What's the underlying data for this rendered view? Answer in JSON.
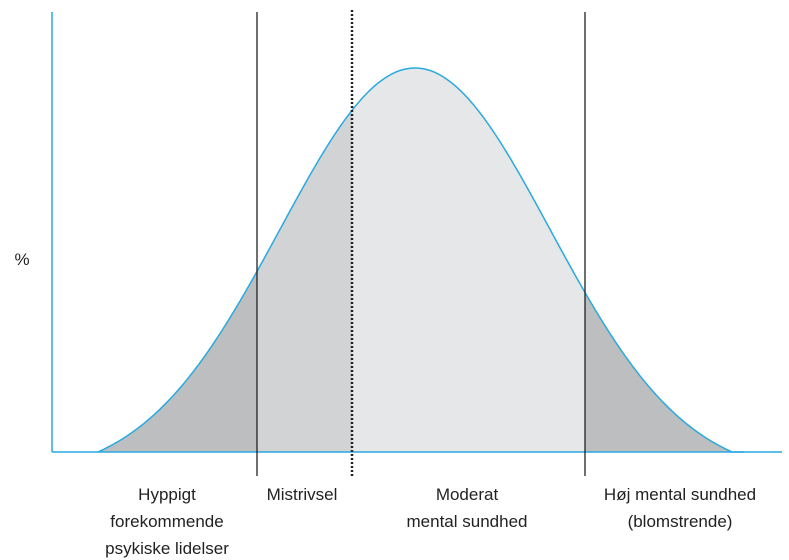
{
  "y_axis_label": "%",
  "regions": [
    {
      "label": [
        "Hyppigt",
        "forekommende",
        "psykiske lidelser"
      ]
    },
    {
      "label": [
        "Mistrivsel"
      ]
    },
    {
      "label": [
        "Moderat",
        "mental sundhed"
      ]
    },
    {
      "label": [
        "Høj mental sundhed",
        "(blomstrende)"
      ]
    }
  ]
}
